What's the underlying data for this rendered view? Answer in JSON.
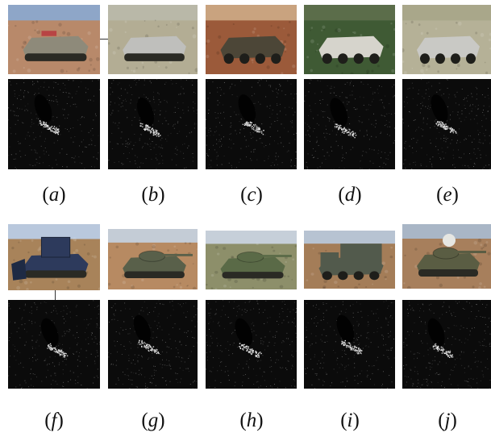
{
  "row1": {
    "items": [
      {
        "letter": "a",
        "kind": "light-tracked-apc",
        "sky": "#8ea6c8",
        "ground": "#b8896a",
        "body": "#8e8a7a"
      },
      {
        "letter": "b",
        "kind": "amphibious-apc",
        "sky": "#b9b8a8",
        "ground": "#b3ad94",
        "body": "#bfbfbc"
      },
      {
        "letter": "c",
        "kind": "wheeled-scout-vehicle",
        "sky": "#c9a37f",
        "ground": "#9b5a3a",
        "body": "#4c4637"
      },
      {
        "letter": "d",
        "kind": "wheeled-apc",
        "sky": "#5b6d4a",
        "ground": "#3f5a34",
        "body": "#d6d4cc"
      },
      {
        "letter": "e",
        "kind": "wheeled-apc-pale",
        "sky": "#a9a78a",
        "ground": "#b5b197",
        "body": "#c9c9c5"
      }
    ]
  },
  "row2": {
    "items": [
      {
        "letter": "f",
        "kind": "bulldozer",
        "sky": "#b9c8dd",
        "ground": "#a8835a",
        "body": "#2d3a5c"
      },
      {
        "letter": "g",
        "kind": "main-battle-tank",
        "sky": "#c4ccd6",
        "ground": "#b78a62",
        "body": "#59604a"
      },
      {
        "letter": "h",
        "kind": "main-battle-tank-green",
        "sky": "#c6cfd9",
        "ground": "#8d8f6a",
        "body": "#5a6a47"
      },
      {
        "letter": "i",
        "kind": "military-truck",
        "sky": "#b7c3d2",
        "ground": "#a47d58",
        "body": "#525a4c"
      },
      {
        "letter": "j",
        "kind": "anti-aircraft-vehicle",
        "sky": "#a9b6c6",
        "ground": "#a77f5c",
        "body": "#5a5d43"
      }
    ]
  },
  "captions": {
    "open": "(",
    "close": ")"
  }
}
